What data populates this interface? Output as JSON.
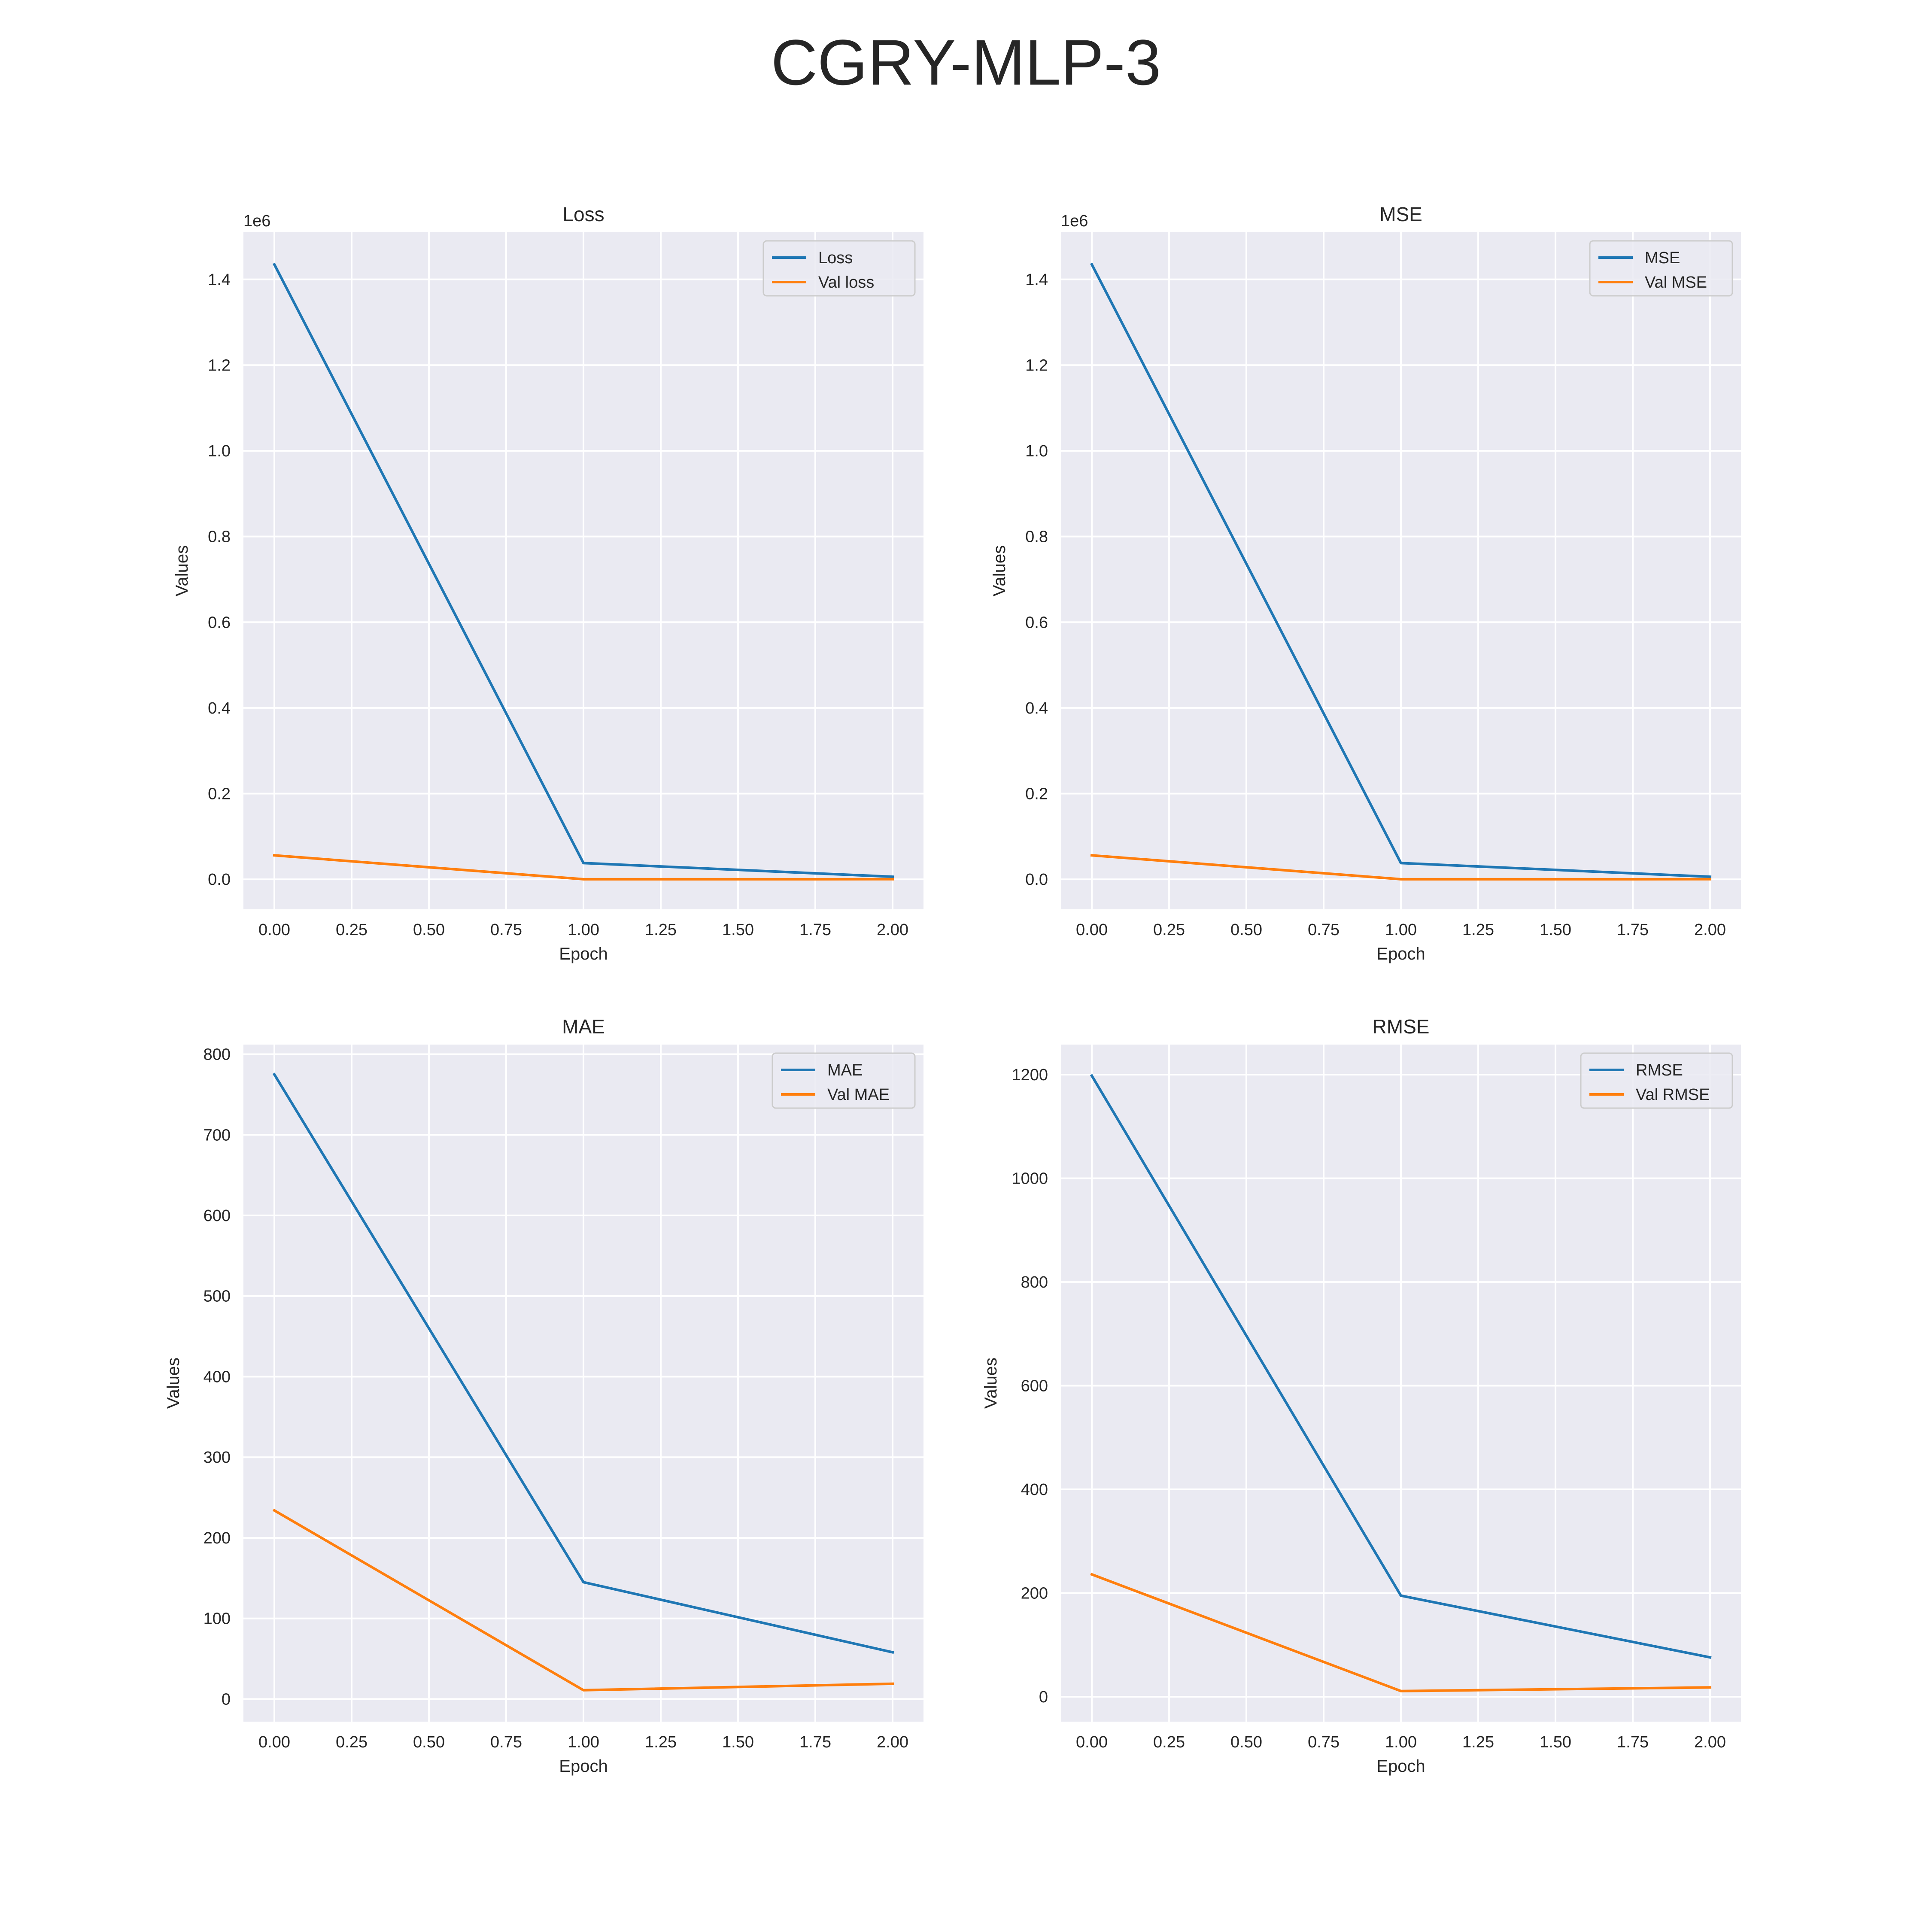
{
  "title": "CGRY-MLP-3",
  "colors": {
    "background": "#ffffff",
    "axes_face": "#eaeaf2",
    "grid": "#ffffff",
    "text": "#262626",
    "series_1": "#1f77b4",
    "series_2": "#ff7f0e"
  },
  "chart_data": [
    {
      "type": "line",
      "title": "Loss",
      "xlabel": "Epoch",
      "ylabel": "Values",
      "y_offset_label": "1e6",
      "x": [
        0,
        1,
        2
      ],
      "xlim": [
        -0.1,
        2.1
      ],
      "ylim": [
        -0.07,
        1.51
      ],
      "xticks": [
        0.0,
        0.25,
        0.5,
        0.75,
        1.0,
        1.25,
        1.5,
        1.75,
        2.0
      ],
      "xtick_labels": [
        "0.00",
        "0.25",
        "0.50",
        "0.75",
        "1.00",
        "1.25",
        "1.50",
        "1.75",
        "2.00"
      ],
      "yticks": [
        0.0,
        0.2,
        0.4,
        0.6,
        0.8,
        1.0,
        1.2,
        1.4
      ],
      "ytick_labels": [
        "0.0",
        "0.2",
        "0.4",
        "0.6",
        "0.8",
        "1.0",
        "1.2",
        "1.4"
      ],
      "grid": true,
      "legend_position": "top-right",
      "series": [
        {
          "name": "Loss",
          "values": [
            1.435,
            0.038,
            0.006
          ]
        },
        {
          "name": "Val loss",
          "values": [
            0.056,
            0.0002,
            0.0003
          ]
        }
      ]
    },
    {
      "type": "line",
      "title": "MSE",
      "xlabel": "Epoch",
      "ylabel": "Values",
      "y_offset_label": "1e6",
      "x": [
        0,
        1,
        2
      ],
      "xlim": [
        -0.1,
        2.1
      ],
      "ylim": [
        -0.07,
        1.51
      ],
      "xticks": [
        0.0,
        0.25,
        0.5,
        0.75,
        1.0,
        1.25,
        1.5,
        1.75,
        2.0
      ],
      "xtick_labels": [
        "0.00",
        "0.25",
        "0.50",
        "0.75",
        "1.00",
        "1.25",
        "1.50",
        "1.75",
        "2.00"
      ],
      "yticks": [
        0.0,
        0.2,
        0.4,
        0.6,
        0.8,
        1.0,
        1.2,
        1.4
      ],
      "ytick_labels": [
        "0.0",
        "0.2",
        "0.4",
        "0.6",
        "0.8",
        "1.0",
        "1.2",
        "1.4"
      ],
      "grid": true,
      "legend_position": "top-right",
      "series": [
        {
          "name": "MSE",
          "values": [
            1.435,
            0.038,
            0.006
          ]
        },
        {
          "name": "Val MSE",
          "values": [
            0.056,
            0.0002,
            0.0003
          ]
        }
      ]
    },
    {
      "type": "line",
      "title": "MAE",
      "xlabel": "Epoch",
      "ylabel": "Values",
      "x": [
        0,
        1,
        2
      ],
      "xlim": [
        -0.1,
        2.1
      ],
      "ylim": [
        -28,
        812
      ],
      "xticks": [
        0.0,
        0.25,
        0.5,
        0.75,
        1.0,
        1.25,
        1.5,
        1.75,
        2.0
      ],
      "xtick_labels": [
        "0.00",
        "0.25",
        "0.50",
        "0.75",
        "1.00",
        "1.25",
        "1.50",
        "1.75",
        "2.00"
      ],
      "yticks": [
        0,
        100,
        200,
        300,
        400,
        500,
        600,
        700,
        800
      ],
      "ytick_labels": [
        "0",
        "100",
        "200",
        "300",
        "400",
        "500",
        "600",
        "700",
        "800"
      ],
      "grid": true,
      "legend_position": "top-right",
      "series": [
        {
          "name": "MAE",
          "values": [
            775,
            145,
            58
          ]
        },
        {
          "name": "Val MAE",
          "values": [
            234,
            11,
            19
          ]
        }
      ]
    },
    {
      "type": "line",
      "title": "RMSE",
      "xlabel": "Epoch",
      "ylabel": "Values",
      "x": [
        0,
        1,
        2
      ],
      "xlim": [
        -0.1,
        2.1
      ],
      "ylim": [
        -48,
        1258
      ],
      "xticks": [
        0.0,
        0.25,
        0.5,
        0.75,
        1.0,
        1.25,
        1.5,
        1.75,
        2.0
      ],
      "xtick_labels": [
        "0.00",
        "0.25",
        "0.50",
        "0.75",
        "1.00",
        "1.25",
        "1.50",
        "1.75",
        "2.00"
      ],
      "yticks": [
        0,
        200,
        400,
        600,
        800,
        1000,
        1200
      ],
      "ytick_labels": [
        "0",
        "200",
        "400",
        "600",
        "800",
        "1000",
        "1200"
      ],
      "grid": true,
      "legend_position": "top-right",
      "series": [
        {
          "name": "RMSE",
          "values": [
            1198,
            195,
            76
          ]
        },
        {
          "name": "Val RMSE",
          "values": [
            236,
            11,
            18
          ]
        }
      ]
    }
  ]
}
